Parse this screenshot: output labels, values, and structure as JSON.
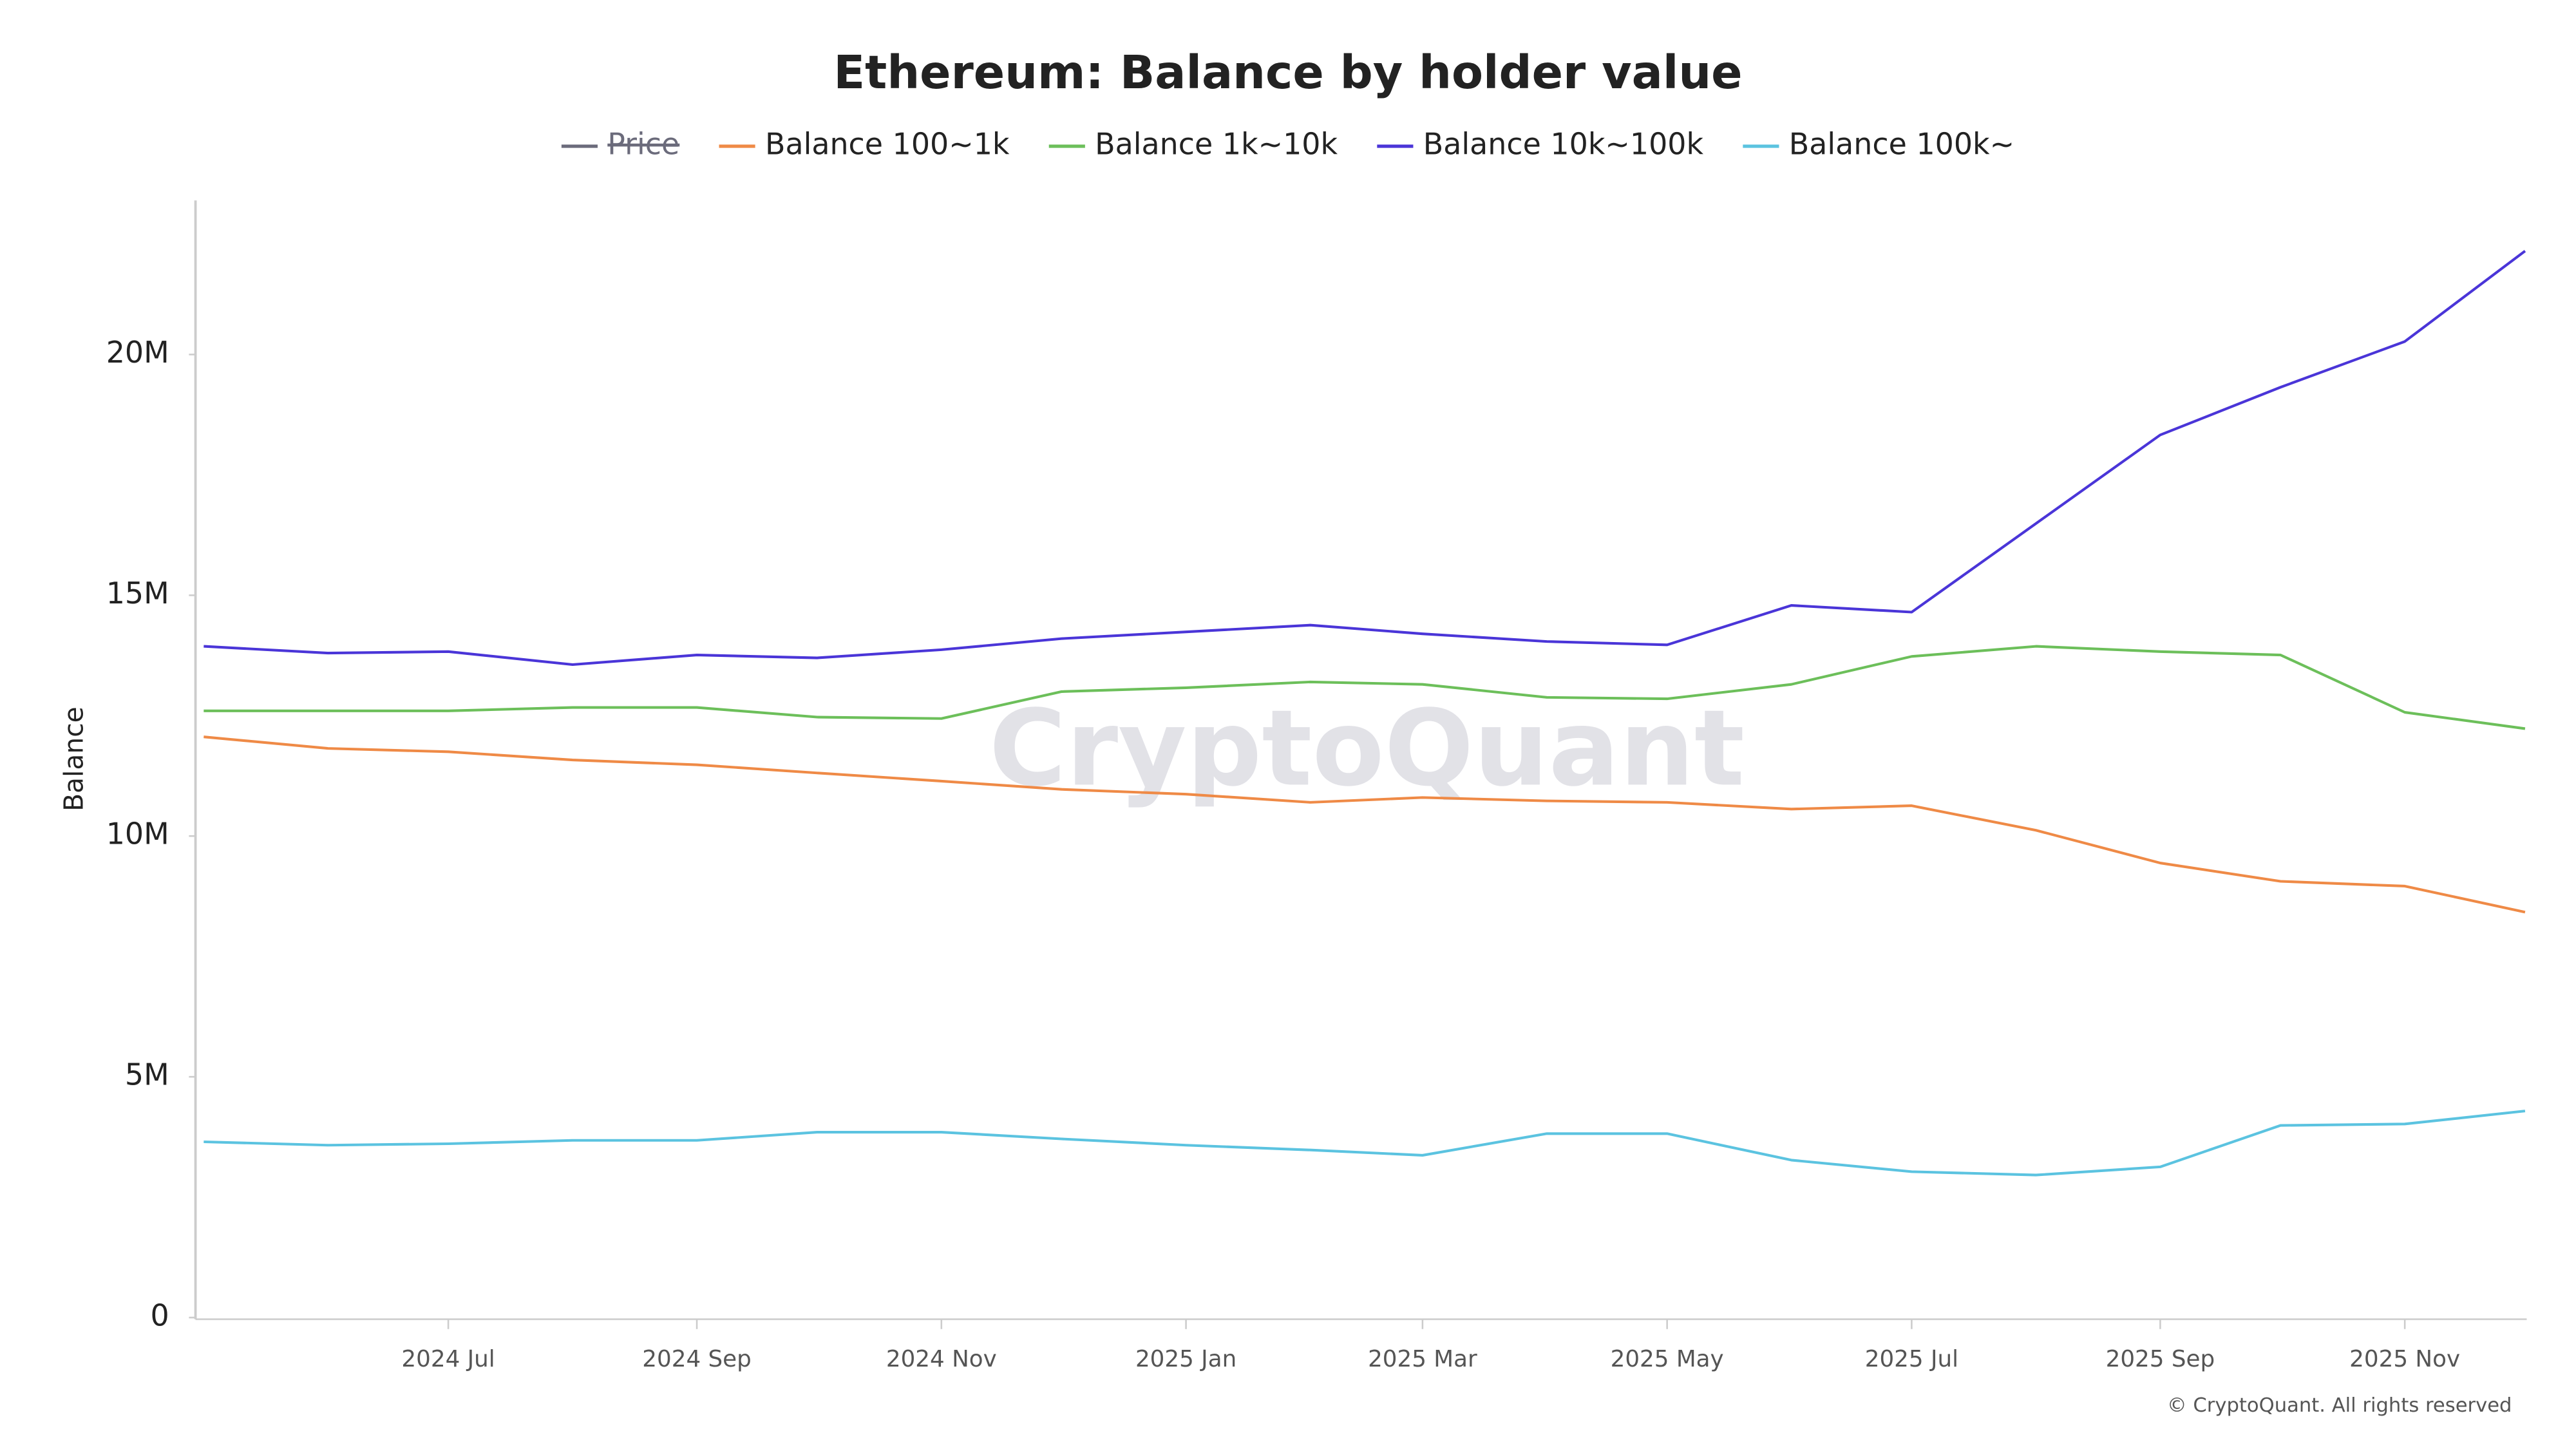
{
  "chart_data": {
    "type": "line",
    "title": "Ethereum: Balance by holder value",
    "y_label": "Balance",
    "watermark": "CryptoQuant",
    "copyright": "© CryptoQuant. All rights reserved",
    "x": [
      "2024-05",
      "2024-06",
      "2024-07",
      "2024-08",
      "2024-09",
      "2024-10",
      "2024-11",
      "2024-12",
      "2025-01",
      "2025-02",
      "2025-03",
      "2025-04",
      "2025-05",
      "2025-06",
      "2025-07",
      "2025-08",
      "2025-09",
      "2025-10",
      "2025-11",
      "2025-12"
    ],
    "xlim": [
      "2024-05",
      "2025-12"
    ],
    "xticks": [
      {
        "value": "2024-07",
        "label": "2024 Jul"
      },
      {
        "value": "2024-09",
        "label": "2024 Sep"
      },
      {
        "value": "2024-11",
        "label": "2024 Nov"
      },
      {
        "value": "2025-01",
        "label": "2025 Jan"
      },
      {
        "value": "2025-03",
        "label": "2025 Mar"
      },
      {
        "value": "2025-05",
        "label": "2025 May"
      },
      {
        "value": "2025-07",
        "label": "2025 Jul"
      },
      {
        "value": "2025-09",
        "label": "2025 Sep"
      },
      {
        "value": "2025-11",
        "label": "2025 Nov"
      }
    ],
    "ylim": [
      0,
      23200000
    ],
    "yticks": [
      0,
      {
        "value": 5000000,
        "label": "5M"
      },
      {
        "value": 10000000,
        "label": "10M"
      },
      {
        "value": 15000000,
        "label": "15M"
      },
      {
        "value": 20000000,
        "label": "20M"
      }
    ],
    "grid": false,
    "legend": "top",
    "series": [
      {
        "name": "Price",
        "color": "#6b6b7b",
        "hidden": true,
        "values": [
          null,
          null,
          null,
          null,
          null,
          null,
          null,
          null,
          null,
          null,
          null,
          null,
          null,
          null,
          null,
          null,
          null,
          null,
          null,
          null
        ]
      },
      {
        "name": "Balance 100~1k",
        "color": "#ef8a46",
        "values": [
          12060000,
          11820000,
          11750000,
          11580000,
          11480000,
          11310000,
          11140000,
          10970000,
          10870000,
          10700000,
          10800000,
          10730000,
          10700000,
          10560000,
          10630000,
          10120000,
          9440000,
          9060000,
          8960000,
          8420000
        ]
      },
      {
        "name": "Balance 1k~10k",
        "color": "#6cbf5a",
        "values": [
          12600000,
          12600000,
          12600000,
          12670000,
          12670000,
          12470000,
          12440000,
          13000000,
          13080000,
          13200000,
          13150000,
          12880000,
          12850000,
          13150000,
          13730000,
          13940000,
          13830000,
          13760000,
          12570000,
          12230000
        ]
      },
      {
        "name": "Balance 10k~100k",
        "color": "#4a35d8",
        "values": [
          13940000,
          13800000,
          13830000,
          13560000,
          13760000,
          13700000,
          13870000,
          14100000,
          14240000,
          14380000,
          14200000,
          14040000,
          13970000,
          14790000,
          14650000,
          16490000,
          18330000,
          19320000,
          20270000,
          22150000
        ]
      },
      {
        "name": "Balance 100k~",
        "color": "#5bc3e0",
        "values": [
          3650000,
          3580000,
          3610000,
          3680000,
          3680000,
          3850000,
          3850000,
          3710000,
          3580000,
          3480000,
          3370000,
          3820000,
          3820000,
          3270000,
          3030000,
          2960000,
          3130000,
          3990000,
          4020000,
          4290000
        ]
      }
    ]
  }
}
